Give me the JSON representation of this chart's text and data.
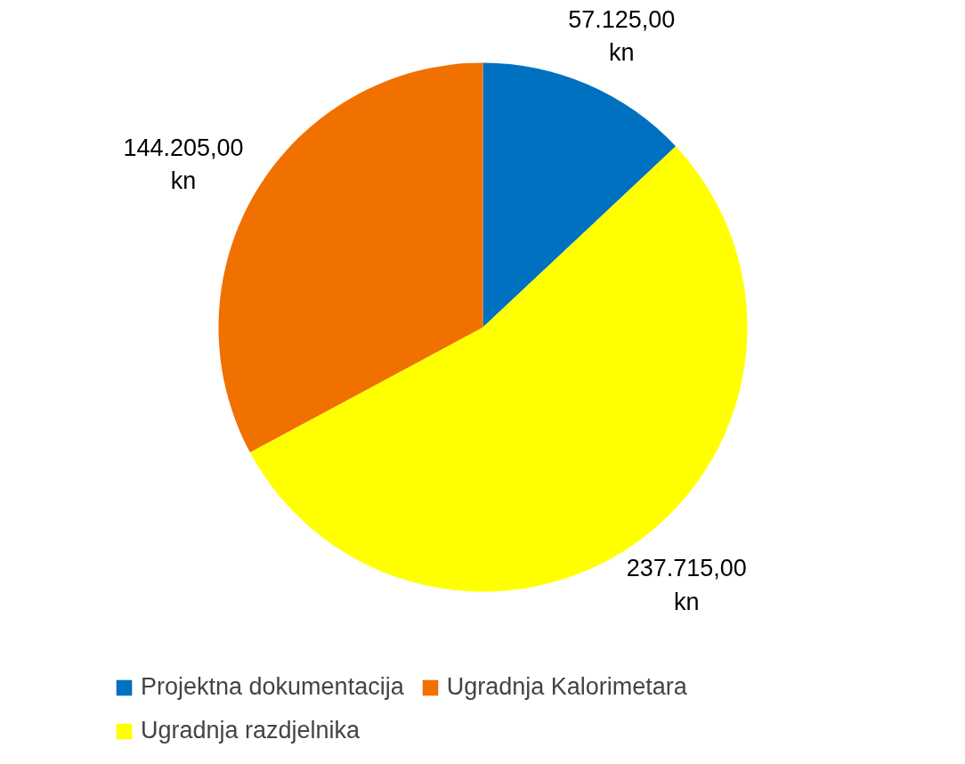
{
  "chart_data": {
    "type": "pie",
    "categories": [
      "Projektna dokumentacija",
      "Ugradnja razdjelnika",
      "Ugradnja Kalorimetara"
    ],
    "values": [
      57125,
      237715,
      144205
    ],
    "colors": [
      "#0070c0",
      "#ffff00",
      "#f07000"
    ],
    "value_labels": [
      "57.125,00 kn",
      "237.715,00 kn",
      "144.205,00 kn"
    ],
    "legend": "bottom"
  }
}
